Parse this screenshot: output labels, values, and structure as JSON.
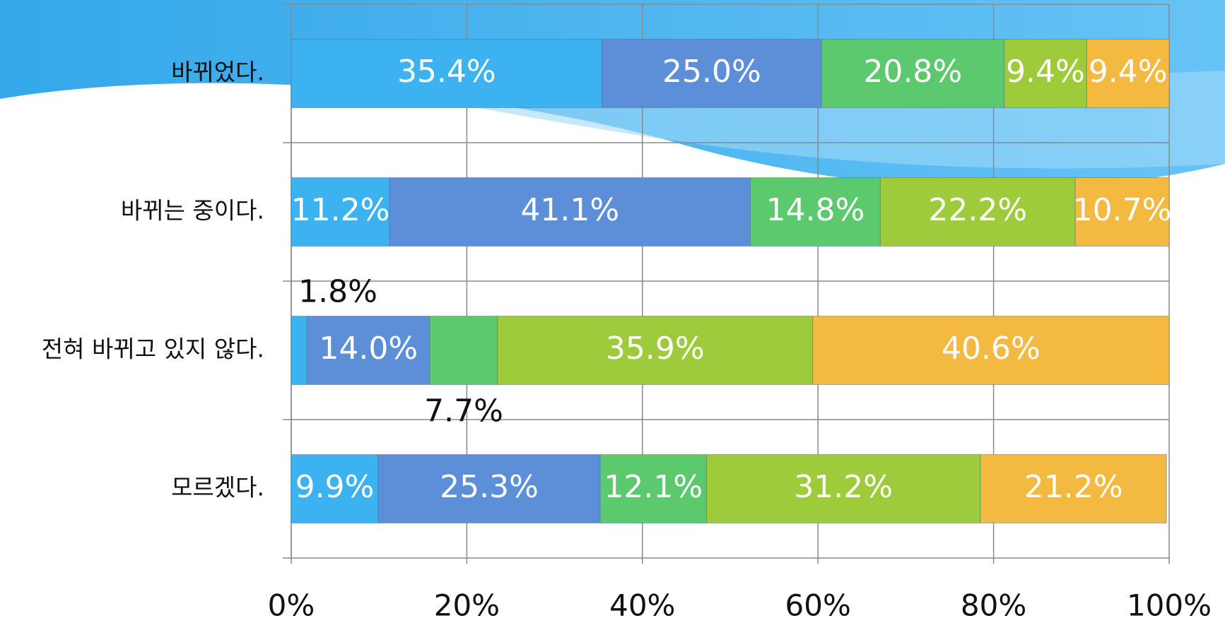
{
  "chart_data": {
    "type": "stacked_barh",
    "categories": [
      "바뀌었다.",
      "바뀌는 중이다.",
      "전혀 바뀌고 있지 않다.",
      "모르겠다."
    ],
    "series": [
      {
        "color": "#3db2f0",
        "values": [
          35.4,
          11.2,
          1.8,
          9.9
        ],
        "value_labels": [
          "35.4%",
          "11.2%",
          "1.8%",
          "9.9%"
        ]
      },
      {
        "color": "#5d8fd8",
        "values": [
          25.0,
          41.1,
          14.0,
          25.3
        ],
        "value_labels": [
          "25.0%",
          "41.1%",
          "14.0%",
          "25.3%"
        ]
      },
      {
        "color": "#5cc96f",
        "values": [
          20.8,
          14.8,
          7.7,
          12.1
        ],
        "value_labels": [
          "20.8%",
          "14.8%",
          "7.7%",
          "12.1%"
        ]
      },
      {
        "color": "#9dcb3c",
        "values": [
          9.4,
          22.2,
          35.9,
          31.2
        ],
        "value_labels": [
          "9.4%",
          "22.2%",
          "35.9%",
          "31.2%"
        ]
      },
      {
        "color": "#f3b940",
        "values": [
          9.4,
          10.7,
          40.6,
          21.2
        ],
        "value_labels": [
          "9.4%",
          "10.7%",
          "40.6%",
          "21.2%"
        ]
      }
    ],
    "xlim": [
      0,
      100
    ],
    "xticks": [
      {
        "value": 0,
        "label": "0%"
      },
      {
        "value": 20,
        "label": "20%"
      },
      {
        "value": 40,
        "label": "40%"
      },
      {
        "value": 60,
        "label": "60%"
      },
      {
        "value": 80,
        "label": "80%"
      },
      {
        "value": 100,
        "label": "100%"
      }
    ],
    "grid": true
  }
}
